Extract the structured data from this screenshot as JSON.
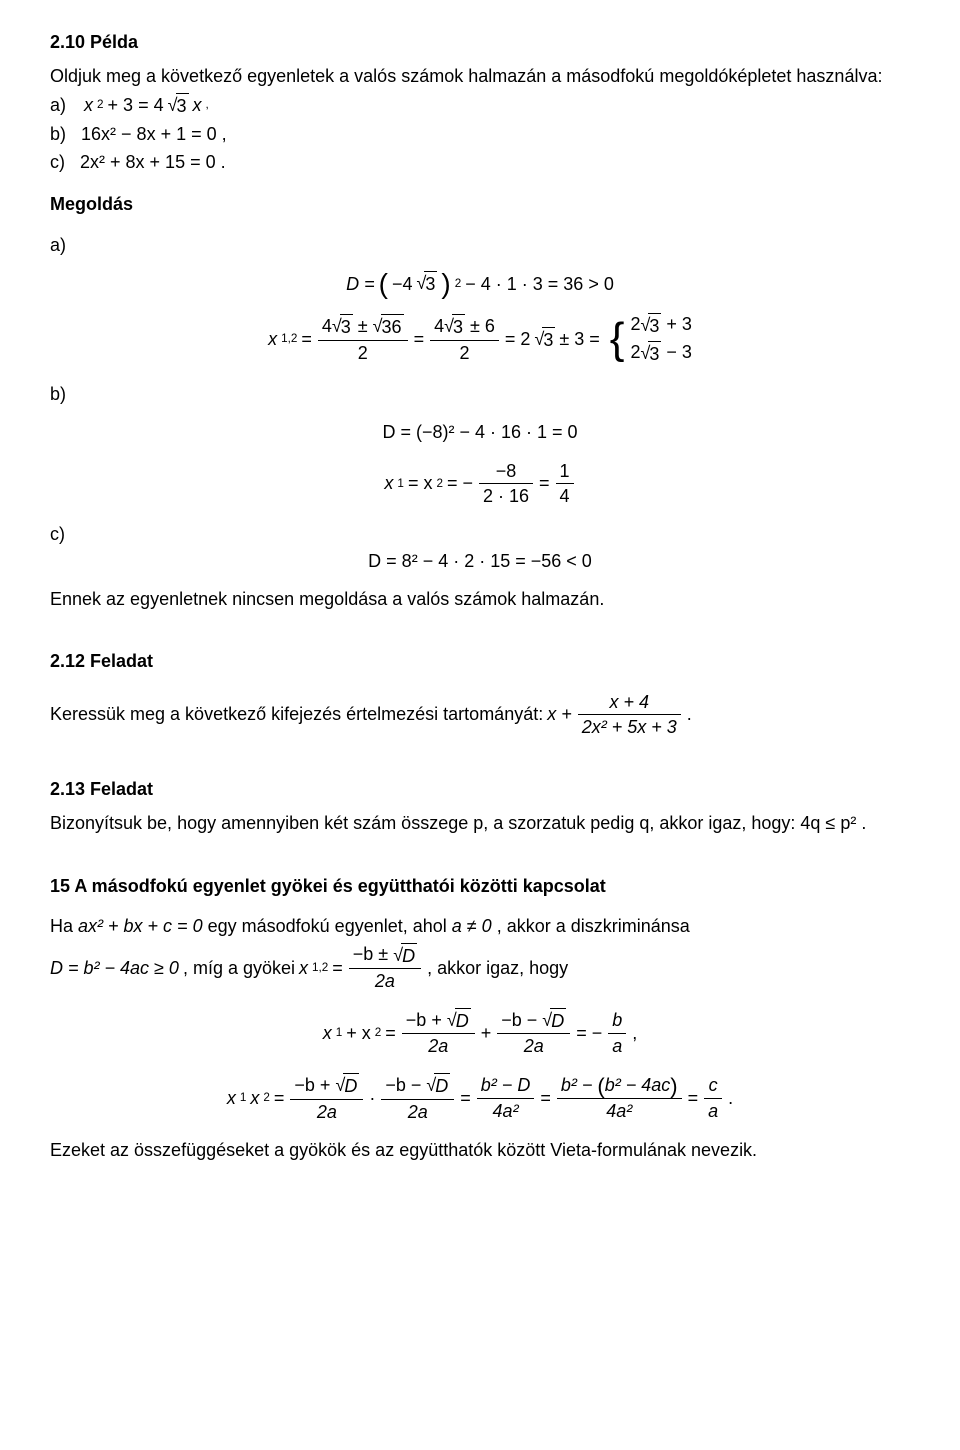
{
  "colors": {
    "text": "#000000",
    "background": "#ffffff",
    "rule": "#000000"
  },
  "typography": {
    "base_font_family": "Arial",
    "base_font_size_pt": 13,
    "heading_weight": "bold"
  },
  "ex210": {
    "heading": "2.10 Példa",
    "intro": "Oldjuk meg a következő egyenletek a valós számok halmazán a másodfokú megoldóképletet használva:",
    "a_prefix": "a)",
    "a_lhs": "x",
    "a_exp": "2",
    "a_plus3": " + 3 = 4",
    "a_sqrt_in": "3",
    "a_tail": "x",
    "a_comma": ",",
    "b_prefix": "b)",
    "b_expr": "16x² − 8x + 1 = 0 ,",
    "c_prefix": "c)",
    "c_expr": "2x² + 8x + 15 = 0 ."
  },
  "sol": {
    "heading": "Megoldás",
    "a_label": "a)",
    "a_D_pre": "D = ",
    "a_D_minus4": "−4",
    "a_D_sqrt3": "3",
    "a_D_sq": "2",
    "a_D_rest": " − 4 · 1 · 3 = 36 > 0",
    "a_x12_lhs": "x",
    "a_x12_sub": "1,2",
    "a_x12_eq": " = ",
    "a_frac1_num_4": "4",
    "a_frac1_num_sqrt3": "3",
    "a_frac1_num_pm": " ± ",
    "a_frac1_num_sqrt36": "36",
    "a_frac1_den": "2",
    "a_mid_eq": " = ",
    "a_frac2_num_4": "4",
    "a_frac2_num_sqrt3": "3",
    "a_frac2_num_pm6": " ± 6",
    "a_frac2_den": "2",
    "a_after_eq": " = 2",
    "a_after_sqrt3": "3",
    "a_after_pm3": " ± 3 = ",
    "a_case1_2": "2",
    "a_case1_sqrt3": "3",
    "a_case1_plus3": " + 3",
    "a_case2_2": "2",
    "a_case2_sqrt3": "3",
    "a_case2_minus3": " − 3",
    "b_label": "b)",
    "b_D_line": "D = (−8)² − 4 · 16 · 1 = 0",
    "b_x_lhs": "x",
    "b_x_sub1": "1",
    "b_x_eq": " = x",
    "b_x_sub2": "2",
    "b_x_eq2": " = −",
    "b_frac1_num": "−8",
    "b_frac1_den": "2 · 16",
    "b_eq3": " = ",
    "b_frac2_num": "1",
    "b_frac2_den": "4",
    "c_label": "c)",
    "c_D_line": "D = 8² − 4 · 2 · 15 = −56 < 0",
    "c_text": "Ennek az egyenletnek nincsen megoldása a valós számok halmazán."
  },
  "ex212": {
    "heading": "2.12 Feladat",
    "text_pre": "Keressük meg a következő kifejezés értelmezési tartományát: ",
    "expr_x": "x + ",
    "frac_num": "x + 4",
    "frac_den": "2x² + 5x + 3",
    "period": "."
  },
  "ex213": {
    "heading": "2.13 Feladat",
    "text": "Bizonyítsuk be, hogy amennyiben két szám összege p, a szorzatuk pedig q, akkor igaz, hogy: 4q ≤ p² ."
  },
  "sec15": {
    "heading": "15   A másodfokú egyenlet gyökei és együtthatói közötti kapcsolat",
    "line1_pre": "Ha ",
    "line1_eq": "ax² + bx + c = 0",
    "line1_mid": " egy másodfokú egyenlet, ahol ",
    "line1_a_ne_0": "a ≠ 0",
    "line1_post": ", akkor a diszkriminánsa",
    "line2_D": "D = b² − 4ac ≥ 0",
    "line2_mid": " , míg a gyökei ",
    "line2_x12": "x",
    "line2_x12_sub": "1,2",
    "line2_eq": " = ",
    "line2_frac_num_mb": "−b ± ",
    "line2_frac_num_sqrtD": "D",
    "line2_frac_den": "2a",
    "line2_post": " , akkor igaz, hogy",
    "sum_lhs_x1": "x",
    "sum_lhs_s1": "1",
    "sum_lhs_plus": " + x",
    "sum_lhs_s2": "2",
    "sum_lhs_eq": " = ",
    "sum_f1_num": "−b + ",
    "sum_f_sqrtD": "D",
    "sum_f_den": "2a",
    "sum_plus": " + ",
    "sum_f2_num": "−b − ",
    "sum_eq2": " = −",
    "sum_f3_num": "b",
    "sum_f3_den": "a",
    "sum_comma": " ,",
    "prod_lhs_x1": "x",
    "prod_lhs_s1": "1",
    "prod_lhs_x2": "x",
    "prod_lhs_s2": "2",
    "prod_eq": " = ",
    "prod_f1_num": "−b + ",
    "prod_dot": " · ",
    "prod_f2_num": "−b − ",
    "prod_eq2": " = ",
    "prod_f3_num": "b² − D",
    "prod_f3_den": "4a²",
    "prod_eq3": " = ",
    "prod_f4_num_pre": "b² − ",
    "prod_f4_num_paren": "b² − 4ac",
    "prod_f4_den": "4a²",
    "prod_eq4": " = ",
    "prod_f5_num": "c",
    "prod_f5_den": "a",
    "prod_period": " .",
    "closing": "Ezeket az összefüggéseket a gyökök és az együtthatók között Vieta-formulának nevezik."
  }
}
